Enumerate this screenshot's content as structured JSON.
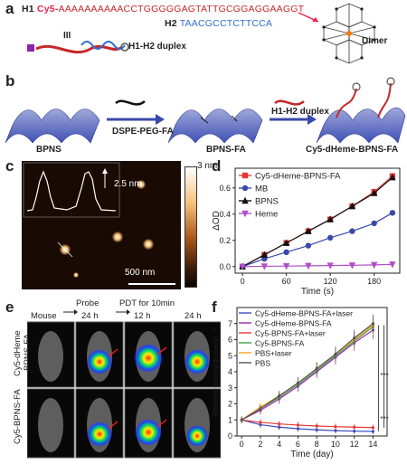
{
  "panel_a": {
    "label": "a",
    "h1_prefix": "H1",
    "h1_cy5": "Cy5-",
    "h1_seq": "AAAAAAAAAACCTGGGGGAGTATTGCGGAGGAAGGT",
    "h2_prefix": "H2",
    "h2_seq": "TAACGCCTCTTCCA",
    "roman": "III",
    "duplex_label": "H1-H2 duplex",
    "dimer_label": "Dimer",
    "colors": {
      "cy5": "#e8224b",
      "h1": "#c62828",
      "h2": "#2f6fd0"
    }
  },
  "panel_b": {
    "label": "b",
    "step1": "DSPE-PEG-FA",
    "step2": "H1-H2 duplex",
    "bpns": "BPNS",
    "bpnsfa": "BPNS-FA",
    "final": "Cy5-dHeme-BPNS-FA"
  },
  "panel_c": {
    "label": "c",
    "height_label": "2.5 nm",
    "scale_max": "3 nm",
    "scale_bar": "500 nm"
  },
  "panel_d": {
    "label": "d",
    "chart_data": {
      "type": "line",
      "xlabel": "Time (s)",
      "ylabel": "ΔOD",
      "xlim": [
        -10,
        215
      ],
      "ylim": [
        -0.05,
        0.75
      ],
      "xticks": [
        0,
        60,
        120,
        180
      ],
      "yticks": [
        0.0,
        0.2,
        0.4,
        0.6
      ],
      "legend": "top-left",
      "x": [
        0,
        30,
        60,
        90,
        120,
        150,
        180,
        205
      ],
      "series": [
        {
          "name": "Cy5-dHeme-BPNS-FA",
          "color": "#e53935",
          "marker": "square",
          "values": [
            0.0,
            0.09,
            0.18,
            0.27,
            0.36,
            0.46,
            0.57,
            0.69
          ]
        },
        {
          "name": "MB",
          "color": "#3949ab",
          "marker": "circle",
          "values": [
            0.0,
            0.06,
            0.11,
            0.16,
            0.22,
            0.27,
            0.33,
            0.41
          ]
        },
        {
          "name": "BPNS",
          "color": "#111111",
          "marker": "triangle",
          "values": [
            0.0,
            0.09,
            0.18,
            0.27,
            0.36,
            0.46,
            0.56,
            0.68
          ]
        },
        {
          "name": "Heme",
          "color": "#b04fc7",
          "marker": "triangle-down",
          "values": [
            0.0,
            0.002,
            0.004,
            0.006,
            0.008,
            0.01,
            0.013,
            0.017
          ]
        }
      ]
    }
  },
  "panel_e": {
    "label": "e",
    "top_labels": [
      "Probe",
      "PDT for 10min"
    ],
    "col_labels": [
      "Mouse",
      "24 h",
      "12 h",
      "24 h"
    ],
    "row_labels": [
      "Cy5-dHeme\n-BPNS-FA",
      "Cy5-BPNS-FA"
    ]
  },
  "panel_f": {
    "label": "f",
    "chart_data": {
      "type": "line",
      "xlabel": "Time (day)",
      "ylabel": "Relative tumoyolume/V₀⁻¹",
      "xlim": [
        -0.5,
        15.5
      ],
      "ylim": [
        0,
        8
      ],
      "xticks": [
        0,
        2,
        4,
        6,
        8,
        10,
        12,
        14
      ],
      "yticks": [
        0,
        1,
        2,
        3,
        4,
        5,
        6,
        7
      ],
      "legend": "top-left",
      "significance": [
        "***",
        "***"
      ],
      "x": [
        0,
        2,
        4,
        6,
        8,
        10,
        12,
        14
      ],
      "series": [
        {
          "name": "Cy5-dHeme-BPNS-FA+laser",
          "color": "#3b4cc0",
          "values": [
            1.0,
            0.7,
            0.55,
            0.45,
            0.38,
            0.33,
            0.3,
            0.28
          ]
        },
        {
          "name": "Cy5-dHeme-BPNS-FA",
          "color": "#9c27b0",
          "values": [
            1.0,
            1.6,
            2.3,
            3.1,
            4.0,
            4.9,
            5.8,
            6.6
          ]
        },
        {
          "name": "Cy5-BPNS-FA+laser",
          "color": "#e53935",
          "values": [
            1.0,
            0.85,
            0.75,
            0.68,
            0.62,
            0.58,
            0.55,
            0.52
          ]
        },
        {
          "name": "Cy5-BPNS-FA",
          "color": "#43a047",
          "values": [
            1.0,
            1.7,
            2.4,
            3.2,
            4.1,
            5.0,
            5.9,
            6.8
          ]
        },
        {
          "name": "PBS+laser",
          "color": "#f5a623",
          "values": [
            1.0,
            1.8,
            2.5,
            3.3,
            4.2,
            5.1,
            6.0,
            6.9
          ]
        },
        {
          "name": "PBS",
          "color": "#555555",
          "values": [
            1.0,
            1.7,
            2.5,
            3.3,
            4.2,
            5.1,
            6.1,
            7.0
          ]
        }
      ]
    }
  }
}
